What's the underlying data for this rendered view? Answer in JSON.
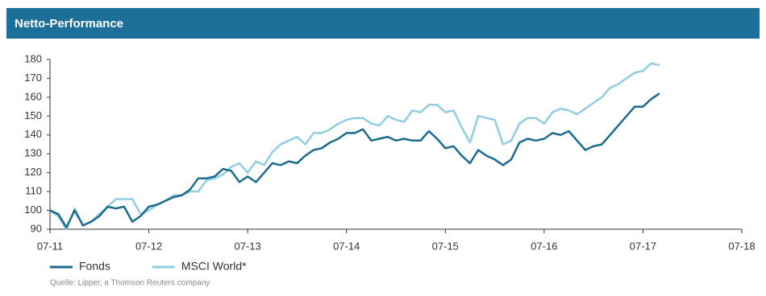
{
  "header": {
    "title": "Netto-Performance"
  },
  "chart_data": {
    "type": "line",
    "categories": [
      "07-11",
      null,
      null,
      null,
      null,
      null,
      null,
      null,
      null,
      null,
      null,
      null,
      "07-12",
      null,
      null,
      null,
      null,
      null,
      null,
      null,
      null,
      null,
      null,
      null,
      "07-13",
      null,
      null,
      null,
      null,
      null,
      null,
      null,
      null,
      null,
      null,
      null,
      "07-14",
      null,
      null,
      null,
      null,
      null,
      null,
      null,
      null,
      null,
      null,
      null,
      "07-15",
      null,
      null,
      null,
      null,
      null,
      null,
      null,
      null,
      null,
      null,
      null,
      "07-16",
      null,
      null,
      null,
      null,
      null,
      null,
      null,
      null,
      null,
      null,
      null,
      "07-17",
      null,
      null,
      null,
      null,
      null,
      null,
      null,
      null,
      null,
      null,
      null,
      "07-18"
    ],
    "series": [
      {
        "name": "Fonds",
        "color": "#1a6b8f",
        "values": [
          100,
          98,
          91,
          100,
          92,
          94,
          97,
          102,
          101,
          102,
          94,
          97,
          102,
          103,
          105,
          107,
          108,
          111,
          117,
          117,
          118,
          122,
          121,
          115,
          118,
          115,
          120,
          125,
          124,
          126,
          125,
          129,
          132,
          133,
          136,
          138,
          141,
          141,
          143,
          137,
          138,
          139,
          137,
          138,
          137,
          137,
          142,
          138,
          133,
          134,
          129,
          125,
          132,
          129,
          127,
          124,
          127,
          136,
          138,
          137,
          138,
          141,
          140,
          142,
          137,
          132,
          134,
          135,
          140,
          145,
          150,
          155,
          155,
          159,
          162,
          null,
          null,
          null,
          null,
          null,
          null,
          null,
          null,
          null,
          null
        ]
      },
      {
        "name": "MSCI World*",
        "color": "#8fcde0",
        "values": [
          100,
          97,
          90,
          101,
          92,
          94,
          98,
          102,
          106,
          106,
          106,
          98,
          100,
          103,
          105,
          108,
          108,
          110,
          110,
          116,
          117,
          119,
          123,
          125,
          120,
          126,
          124,
          131,
          135,
          137,
          139,
          135,
          141,
          141,
          143,
          146,
          148,
          149,
          149,
          146,
          145,
          150,
          148,
          147,
          153,
          152,
          156,
          156,
          152,
          153,
          144,
          136,
          150,
          149,
          148,
          135,
          137,
          146,
          149,
          149,
          146,
          152,
          154,
          153,
          151,
          154,
          157,
          160,
          165,
          167,
          170,
          173,
          174,
          178,
          177,
          null,
          null,
          null,
          null,
          null,
          null,
          null,
          null,
          null,
          null
        ]
      }
    ],
    "ylim": [
      90,
      180
    ],
    "yticks": [
      90,
      100,
      110,
      120,
      130,
      140,
      150,
      160,
      170,
      180
    ],
    "grid": false
  },
  "source": "Quelle: Lipper, a Thomson Reuters company"
}
